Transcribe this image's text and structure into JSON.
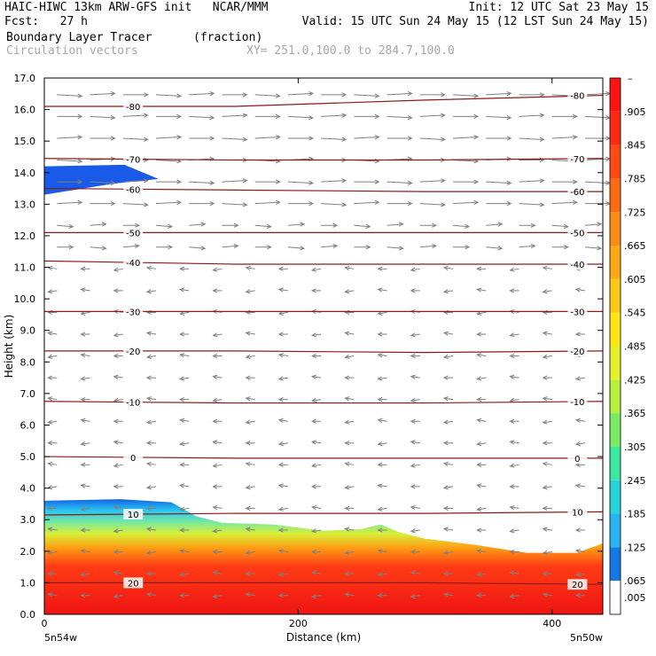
{
  "header": {
    "line1_left": "HAIC-HIWC 13km ARW-GFS init   NCAR/MMM",
    "line1_right": "Init: 12 UTC Sat 23 May 15",
    "line2_left": "Fcst:   27 h",
    "line2_right": "Valid: 15 UTC Sun 24 May 15 (12 LST Sun 24 May 15)",
    "field_name": "Boundary Layer Tracer",
    "field_units": "(fraction)",
    "overlay_name": "Circulation vectors",
    "cross_section": "XY= 251.0,100.0 to 284.7,100.0"
  },
  "chart_data": {
    "type": "heatmap",
    "xlabel": "Distance (km)",
    "ylabel": "Height (km)",
    "xlim": [
      0,
      440
    ],
    "ylim": [
      0,
      17
    ],
    "x_ticks": [
      0,
      200,
      400
    ],
    "y_ticks": [
      "0.0",
      "1.0",
      "2.0",
      "3.0",
      "4.0",
      "5.0",
      "6.0",
      "7.0",
      "8.0",
      "9.0",
      "10.0",
      "11.0",
      "12.0",
      "13.0",
      "14.0",
      "15.0",
      "16.0",
      "17.0"
    ],
    "x_endpoint_left": "5n54w",
    "x_endpoint_right": "5n50w",
    "colorbar": {
      "top_label": "–",
      "labels": [
        ".905",
        ".845",
        ".785",
        ".725",
        ".665",
        ".605",
        ".545",
        ".485",
        ".425",
        ".365",
        ".305",
        ".245",
        ".185",
        ".125",
        ".065",
        ".005"
      ]
    },
    "tracer_top_km": [
      [
        0,
        3.6
      ],
      [
        60,
        3.65
      ],
      [
        100,
        3.55
      ],
      [
        120,
        3.1
      ],
      [
        140,
        2.9
      ],
      [
        180,
        2.85
      ],
      [
        220,
        2.65
      ],
      [
        250,
        2.7
      ],
      [
        265,
        2.85
      ],
      [
        280,
        2.6
      ],
      [
        300,
        2.4
      ],
      [
        340,
        2.2
      ],
      [
        380,
        1.95
      ],
      [
        420,
        1.95
      ],
      [
        440,
        2.25
      ]
    ],
    "upper_tracer_patch": {
      "x_end_km": 90,
      "top_km": 14.2,
      "bottom_km": 13.3
    },
    "isotherms": [
      {
        "value": "-80",
        "y": [
          16.1,
          16.1,
          16.3,
          16.45
        ]
      },
      {
        "value": "-70",
        "y": [
          14.45,
          14.4,
          14.4,
          14.45
        ]
      },
      {
        "value": "-60",
        "y": [
          13.5,
          13.45,
          13.4,
          13.4
        ]
      },
      {
        "value": "-50",
        "y": [
          12.1,
          12.1,
          12.1,
          12.1
        ]
      },
      {
        "value": "-40",
        "y": [
          11.2,
          11.1,
          11.1,
          11.1
        ]
      },
      {
        "value": "-30",
        "y": [
          9.6,
          9.6,
          9.6,
          9.6
        ]
      },
      {
        "value": "-20",
        "y": [
          8.35,
          8.35,
          8.3,
          8.35
        ]
      },
      {
        "value": "-10",
        "y": [
          6.75,
          6.7,
          6.7,
          6.75
        ]
      },
      {
        "value": "0",
        "y": [
          5.0,
          4.95,
          4.95,
          4.95
        ]
      },
      {
        "value": "10",
        "y": [
          3.15,
          3.2,
          3.2,
          3.25
        ]
      },
      {
        "value": "20",
        "y": [
          1.0,
          1.0,
          1.0,
          0.95
        ]
      }
    ],
    "isotherm_x": [
      0,
      150,
      300,
      440
    ],
    "grid": false,
    "legend": "colorbar-right"
  }
}
